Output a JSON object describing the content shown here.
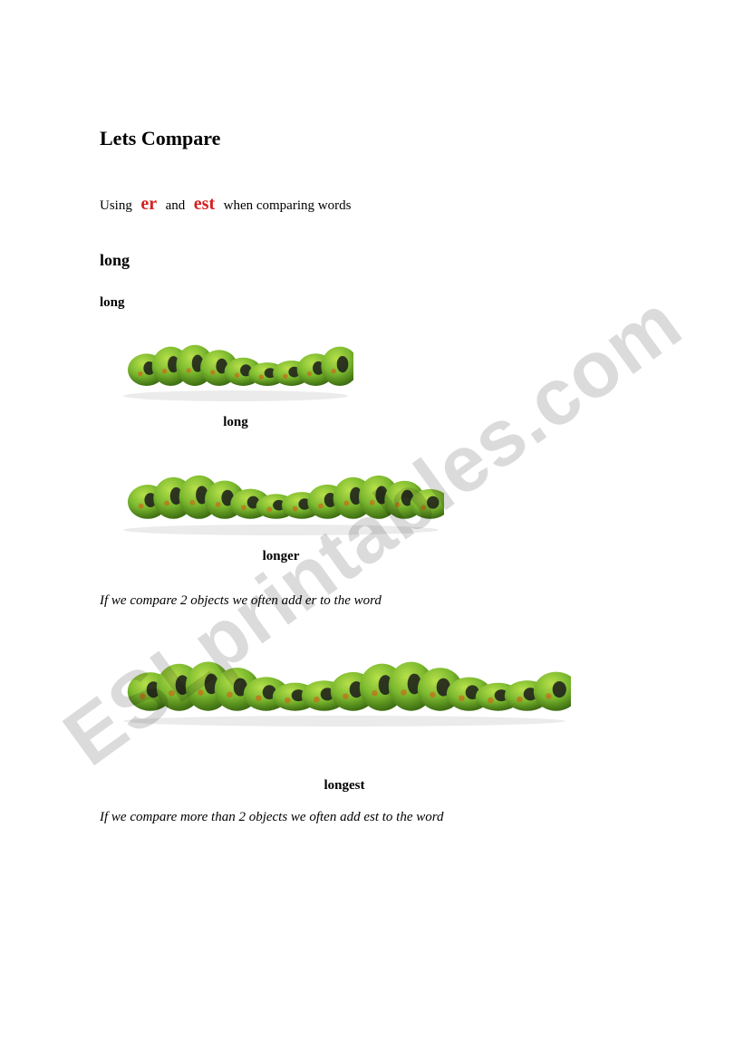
{
  "title": "Lets Compare",
  "intro": {
    "prefix": "Using",
    "suffix1": "er",
    "mid": "and",
    "suffix2": "est",
    "tail": "when comparing words"
  },
  "wordHeading": "long",
  "wordSub": "long",
  "caterpillars": [
    {
      "label": "long",
      "widthPx": 260,
      "heightPx": 60,
      "segments": 9
    },
    {
      "label": "longer",
      "widthPx": 360,
      "heightPx": 66,
      "segments": 12
    },
    {
      "label": "longest",
      "widthPx": 500,
      "heightPx": 70,
      "segments": 15
    }
  ],
  "rules": {
    "er": "If we compare 2 objects we often add er to the word",
    "est": "If we compare more than 2 objects we often add est to the word"
  },
  "watermark": "ESLprintables.com",
  "colors": {
    "bodyLight": "#b7e04a",
    "bodyMid": "#7ab82e",
    "bodyDark": "#3e6e12",
    "spot": "#1a1a1a",
    "spotOrange": "#c96a18",
    "shadow": "rgba(0,0,0,0.08)"
  }
}
